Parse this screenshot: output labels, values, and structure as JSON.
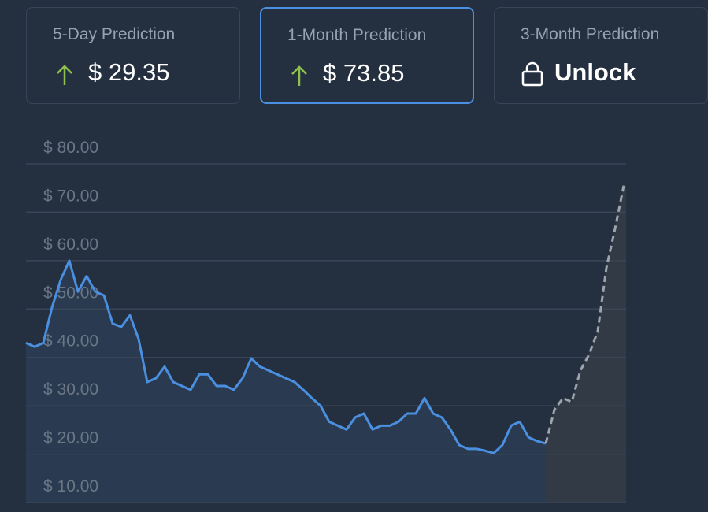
{
  "cards": [
    {
      "label": "5-Day Prediction",
      "value": "$ 29.35"
    },
    {
      "label": "1-Month Prediction",
      "value": "$ 73.85"
    },
    {
      "label": "3-Month Prediction",
      "value": "Unlock"
    }
  ],
  "chart_data": {
    "type": "line",
    "ylim": [
      10,
      80
    ],
    "yticks": [
      {
        "value": 10,
        "label": "$ 10.00"
      },
      {
        "value": 20,
        "label": "$ 20.00"
      },
      {
        "value": 30,
        "label": "$ 30.00"
      },
      {
        "value": 40,
        "label": "$ 40.00"
      },
      {
        "value": 50,
        "label": "$ 50.00"
      },
      {
        "value": 60,
        "label": "$ 60.00"
      },
      {
        "value": 70,
        "label": "$ 70.00"
      },
      {
        "value": 80,
        "label": "$ 80.00"
      }
    ],
    "grid": true,
    "series": [
      {
        "color": "#4a8fe0",
        "fill": "#2a3a51",
        "dashed": false,
        "values": [
          43,
          42.2,
          43,
          50.3,
          56,
          60,
          53.6,
          56.8,
          53.6,
          52.8,
          47,
          46.3,
          48.7,
          43.8,
          34.9,
          35.7,
          38.1,
          34.9,
          34.1,
          33.3,
          36.5,
          36.5,
          34.1,
          34.1,
          33.3,
          35.7,
          39.8,
          38.1,
          37.3,
          36.5,
          35.7,
          34.9,
          33.3,
          31.6,
          30,
          26.7,
          25.9,
          25.1,
          27.6,
          28.4,
          25.1,
          25.9,
          25.9,
          26.7,
          28.4,
          28.4,
          31.6,
          28.4,
          27.6,
          25.1,
          21.9,
          21.1,
          21.1,
          20.7,
          20.2,
          21.9,
          25.9,
          26.7,
          23.5,
          22.7,
          22.2,
          null,
          null,
          null,
          null,
          null,
          null,
          null,
          null,
          null
        ]
      },
      {
        "color": "#9ea4ac",
        "fill": "#323a46",
        "dashed": true,
        "values": [
          null,
          null,
          null,
          null,
          null,
          null,
          null,
          null,
          null,
          null,
          null,
          null,
          null,
          null,
          null,
          null,
          null,
          null,
          null,
          null,
          null,
          null,
          null,
          null,
          null,
          null,
          null,
          null,
          null,
          null,
          null,
          null,
          null,
          null,
          null,
          null,
          null,
          null,
          null,
          null,
          null,
          null,
          null,
          null,
          null,
          null,
          null,
          null,
          null,
          null,
          null,
          null,
          null,
          null,
          null,
          null,
          null,
          null,
          null,
          null,
          22.2,
          29.2,
          31.6,
          30.8,
          37.3,
          40.6,
          45.4,
          58.5,
          66.6,
          75.5
        ]
      }
    ]
  }
}
